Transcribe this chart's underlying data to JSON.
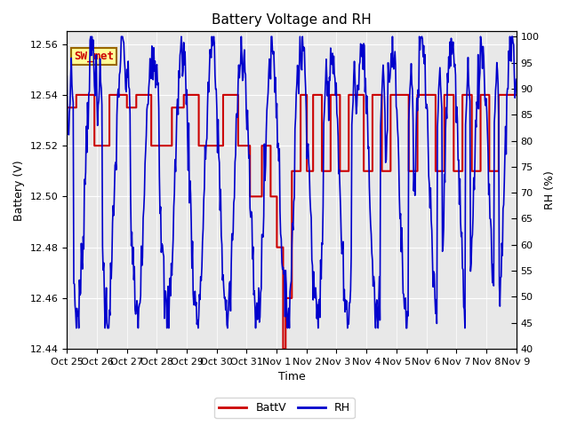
{
  "title": "Battery Voltage and RH",
  "xlabel": "Time",
  "ylabel_left": "Battery (V)",
  "ylabel_right": "RH (%)",
  "ylim_left": [
    12.44,
    12.565
  ],
  "ylim_right": [
    40,
    101
  ],
  "yticks_left": [
    12.44,
    12.46,
    12.48,
    12.5,
    12.52,
    12.54,
    12.56
  ],
  "yticks_right": [
    40,
    45,
    50,
    55,
    60,
    65,
    70,
    75,
    80,
    85,
    90,
    95,
    100
  ],
  "xtick_labels": [
    "Oct 25",
    "Oct 26",
    "Oct 27",
    "Oct 28",
    "Oct 29",
    "Oct 30",
    "Oct 31",
    "Nov 1",
    "Nov 2",
    "Nov 3",
    "Nov 4",
    "Nov 5",
    "Nov 6",
    "Nov 7",
    "Nov 8",
    "Nov 9"
  ],
  "legend_label_batt": "BattV",
  "legend_label_rh": "RH",
  "batt_color": "#cc0000",
  "rh_color": "#0000cc",
  "station_label": "SW_met",
  "station_label_color": "#cc0000",
  "station_box_face": "#ffff99",
  "station_box_edge": "#996600",
  "background_plot": "#e8e8e8",
  "background_fig": "#ffffff",
  "grid_color": "#ffffff",
  "title_fontsize": 11,
  "axis_label_fontsize": 9,
  "tick_fontsize": 8,
  "legend_fontsize": 9
}
